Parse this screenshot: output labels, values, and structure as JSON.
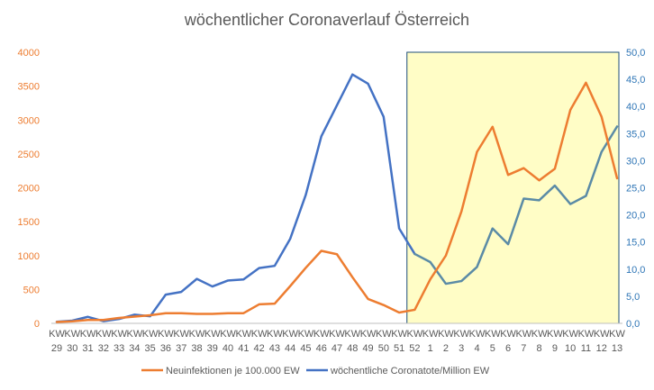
{
  "chart_data": {
    "type": "line",
    "title": "wöchentlicher Coronaverlauf Österreich",
    "categories": [
      [
        "KW",
        "29"
      ],
      [
        "KW",
        "30"
      ],
      [
        "KW",
        "31"
      ],
      [
        "KW",
        "32"
      ],
      [
        "KW",
        "33"
      ],
      [
        "KW",
        "34"
      ],
      [
        "KW",
        "35"
      ],
      [
        "KW",
        "36"
      ],
      [
        "KW",
        "37"
      ],
      [
        "KW",
        "38"
      ],
      [
        "KW",
        "39"
      ],
      [
        "KW",
        "40"
      ],
      [
        "KW",
        "41"
      ],
      [
        "KW",
        "42"
      ],
      [
        "KW",
        "43"
      ],
      [
        "KW",
        "44"
      ],
      [
        "KW",
        "45"
      ],
      [
        "KW",
        "46"
      ],
      [
        "KW",
        "47"
      ],
      [
        "KW",
        "48"
      ],
      [
        "KW",
        "49"
      ],
      [
        "KW",
        "50"
      ],
      [
        "KW",
        "51"
      ],
      [
        "KW",
        "52"
      ],
      [
        "KW",
        "1"
      ],
      [
        "KW",
        "2"
      ],
      [
        "KW",
        "3"
      ],
      [
        "KW",
        "4"
      ],
      [
        "KW",
        "5"
      ],
      [
        "KW",
        "6"
      ],
      [
        "KW",
        "7"
      ],
      [
        "KW",
        "8"
      ],
      [
        "KW",
        "9"
      ],
      [
        "KW",
        "10"
      ],
      [
        "KW",
        "11"
      ],
      [
        "KW",
        "12"
      ],
      [
        "KW",
        "13"
      ]
    ],
    "y_left": {
      "min": 0,
      "max": 4000,
      "step": 500,
      "ticks": [
        "0",
        "500",
        "1000",
        "1500",
        "2000",
        "2500",
        "3000",
        "3500",
        "4000"
      ]
    },
    "y_right": {
      "min": 0,
      "max": 50,
      "step": 5,
      "ticks": [
        "0,0",
        "5,0",
        "10,0",
        "15,0",
        "20,0",
        "25,0",
        "30,0",
        "35,0",
        "40,0",
        "45,0",
        "50,0"
      ]
    },
    "highlight": {
      "from_category": "KW 52",
      "to_category": "KW 13"
    },
    "series": [
      {
        "name": "Neuinfektionen je 100.000 EW",
        "axis": "left",
        "color": "#ED7D31",
        "values": [
          20,
          30,
          50,
          50,
          80,
          100,
          120,
          150,
          150,
          140,
          140,
          150,
          150,
          280,
          290,
          550,
          820,
          1070,
          1020,
          680,
          360,
          270,
          160,
          200,
          650,
          1000,
          1650,
          2530,
          2900,
          2190,
          2290,
          2110,
          2280,
          3150,
          3550,
          3050,
          2140
        ]
      },
      {
        "name": "wöchentliche Coronatote/Million EW",
        "axis": "right",
        "color": "#4472C4",
        "highlight_color": "#5B8BA6",
        "values": [
          0.3,
          0.5,
          1.2,
          0.4,
          0.8,
          1.6,
          1.3,
          5.3,
          5.8,
          8.2,
          6.8,
          7.9,
          8.1,
          10.2,
          10.6,
          15.6,
          23.7,
          34.5,
          40.2,
          45.9,
          44.2,
          38.1,
          17.5,
          12.8,
          11.3,
          7.3,
          7.8,
          10.4,
          17.5,
          14.6,
          23.0,
          22.7,
          25.4,
          22.0,
          23.5,
          31.6,
          36.3
        ]
      }
    ],
    "legend_position": "bottom",
    "grid": false
  }
}
